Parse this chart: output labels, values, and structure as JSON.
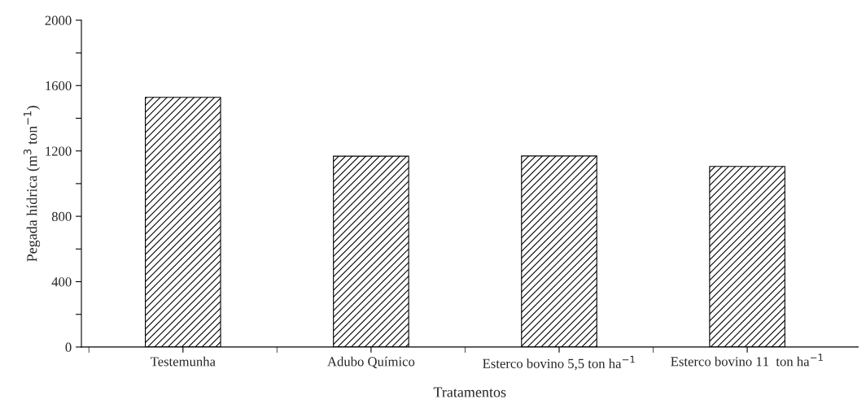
{
  "chart_data": {
    "type": "bar",
    "xlabel": "Tratamentos",
    "ylabel": "Pegada hídrica (m$^{3}$ ton$^{−1}$)",
    "categories": [
      "Testemunha",
      "Adubo Químico",
      "Esterco bovino 5,5 ton ha$^{−1}$",
      "Esterco bovino 11  ton ha$^{−1}$"
    ],
    "values": [
      1528,
      1168,
      1169,
      1105
    ],
    "color": "#000000",
    "ylim": [
      0,
      2000
    ],
    "yticks": [
      0,
      {
        "value": 200,
        "label": null
      },
      400,
      {
        "value": 600,
        "label": null
      },
      800,
      {
        "value": 1000,
        "label": null
      },
      1200,
      {
        "value": 1400,
        "label": null
      },
      1600,
      {
        "value": 1800,
        "label": null
      },
      2000
    ],
    "grid": false,
    "legend": false
  }
}
